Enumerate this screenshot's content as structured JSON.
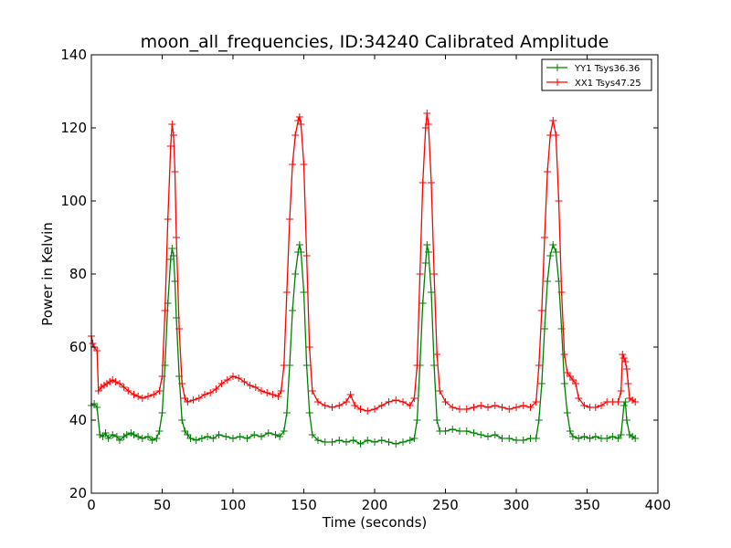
{
  "chart_data": {
    "type": "line",
    "title": "moon_all_frequencies, ID:34240 Calibrated Amplitude",
    "xlabel": "Time (seconds)",
    "ylabel": "Power in Kelvin",
    "xlim": [
      0,
      400
    ],
    "ylim": [
      20,
      140
    ],
    "xticks": [
      0,
      50,
      100,
      150,
      200,
      250,
      300,
      350,
      400
    ],
    "yticks": [
      20,
      40,
      60,
      80,
      100,
      120,
      140
    ],
    "grid": false,
    "legend_position": "top-right",
    "marker": "+",
    "series": [
      {
        "name": "YY1 Tsys36.36",
        "color": "#008000",
        "points": [
          [
            0,
            44
          ],
          [
            2,
            44.5
          ],
          [
            4,
            43.5
          ],
          [
            6,
            36
          ],
          [
            8,
            35.5
          ],
          [
            10,
            36.5
          ],
          [
            12,
            35
          ],
          [
            15,
            36
          ],
          [
            18,
            35.5
          ],
          [
            20,
            34.5
          ],
          [
            23,
            35.5
          ],
          [
            25,
            36
          ],
          [
            28,
            36.5
          ],
          [
            30,
            36
          ],
          [
            33,
            35.5
          ],
          [
            36,
            35
          ],
          [
            40,
            35.5
          ],
          [
            43,
            34.5
          ],
          [
            46,
            35
          ],
          [
            48,
            37
          ],
          [
            50,
            42
          ],
          [
            52,
            55
          ],
          [
            54,
            72
          ],
          [
            56,
            84
          ],
          [
            57,
            87
          ],
          [
            58,
            85
          ],
          [
            59,
            78
          ],
          [
            60,
            68
          ],
          [
            62,
            52
          ],
          [
            64,
            40
          ],
          [
            66,
            37
          ],
          [
            68,
            36
          ],
          [
            70,
            35
          ],
          [
            74,
            34.5
          ],
          [
            78,
            35
          ],
          [
            82,
            35.5
          ],
          [
            86,
            35
          ],
          [
            90,
            36
          ],
          [
            95,
            35.5
          ],
          [
            100,
            35
          ],
          [
            105,
            35.5
          ],
          [
            110,
            35
          ],
          [
            115,
            36
          ],
          [
            120,
            35.5
          ],
          [
            125,
            36.5
          ],
          [
            130,
            36
          ],
          [
            133,
            35.5
          ],
          [
            136,
            37
          ],
          [
            138,
            42
          ],
          [
            140,
            55
          ],
          [
            142,
            70
          ],
          [
            144,
            80
          ],
          [
            146,
            86
          ],
          [
            147,
            88
          ],
          [
            148,
            86
          ],
          [
            150,
            75
          ],
          [
            152,
            55
          ],
          [
            154,
            42
          ],
          [
            156,
            36
          ],
          [
            160,
            34.5
          ],
          [
            165,
            34
          ],
          [
            170,
            34
          ],
          [
            175,
            34.5
          ],
          [
            180,
            34
          ],
          [
            185,
            34.5
          ],
          [
            190,
            33.5
          ],
          [
            195,
            34.5
          ],
          [
            200,
            34
          ],
          [
            205,
            34.5
          ],
          [
            210,
            34
          ],
          [
            215,
            33.5
          ],
          [
            220,
            34
          ],
          [
            225,
            34.5
          ],
          [
            228,
            35
          ],
          [
            230,
            40
          ],
          [
            232,
            55
          ],
          [
            234,
            72
          ],
          [
            236,
            83
          ],
          [
            237,
            88
          ],
          [
            238,
            86
          ],
          [
            240,
            75
          ],
          [
            242,
            55
          ],
          [
            244,
            40
          ],
          [
            246,
            37
          ],
          [
            250,
            37
          ],
          [
            255,
            37.5
          ],
          [
            260,
            37
          ],
          [
            265,
            37
          ],
          [
            270,
            36.5
          ],
          [
            275,
            36
          ],
          [
            280,
            35.5
          ],
          [
            285,
            36
          ],
          [
            290,
            35
          ],
          [
            295,
            35
          ],
          [
            300,
            34.5
          ],
          [
            305,
            34.5
          ],
          [
            310,
            35
          ],
          [
            314,
            35
          ],
          [
            316,
            40
          ],
          [
            318,
            50
          ],
          [
            320,
            65
          ],
          [
            322,
            78
          ],
          [
            324,
            85
          ],
          [
            326,
            88
          ],
          [
            328,
            86
          ],
          [
            330,
            78
          ],
          [
            332,
            65
          ],
          [
            334,
            50
          ],
          [
            336,
            42
          ],
          [
            338,
            37
          ],
          [
            340,
            35.5
          ],
          [
            344,
            35
          ],
          [
            348,
            35.5
          ],
          [
            352,
            35
          ],
          [
            356,
            35.5
          ],
          [
            360,
            35
          ],
          [
            364,
            35
          ],
          [
            368,
            35.5
          ],
          [
            372,
            35
          ],
          [
            374,
            36
          ],
          [
            376,
            44
          ],
          [
            377,
            45
          ],
          [
            378,
            40
          ],
          [
            380,
            36
          ],
          [
            382,
            35.5
          ],
          [
            384,
            35
          ]
        ]
      },
      {
        "name": "XX1 Tsys47.25",
        "color": "#ff0000",
        "points": [
          [
            0,
            63
          ],
          [
            1,
            61
          ],
          [
            2,
            60
          ],
          [
            4,
            59
          ],
          [
            5,
            48
          ],
          [
            7,
            49
          ],
          [
            9,
            49.5
          ],
          [
            11,
            50
          ],
          [
            13,
            50.5
          ],
          [
            15,
            51
          ],
          [
            17,
            50.5
          ],
          [
            20,
            50
          ],
          [
            23,
            49
          ],
          [
            26,
            48
          ],
          [
            30,
            47
          ],
          [
            33,
            46.5
          ],
          [
            36,
            46
          ],
          [
            40,
            46.5
          ],
          [
            44,
            47
          ],
          [
            48,
            48
          ],
          [
            50,
            52
          ],
          [
            52,
            70
          ],
          [
            54,
            95
          ],
          [
            56,
            115
          ],
          [
            57,
            121
          ],
          [
            58,
            118
          ],
          [
            59,
            108
          ],
          [
            60,
            90
          ],
          [
            62,
            65
          ],
          [
            64,
            50
          ],
          [
            66,
            46
          ],
          [
            68,
            45
          ],
          [
            72,
            45.5
          ],
          [
            76,
            46
          ],
          [
            80,
            47
          ],
          [
            84,
            47.5
          ],
          [
            88,
            48.5
          ],
          [
            92,
            50
          ],
          [
            96,
            51
          ],
          [
            100,
            52
          ],
          [
            104,
            51.5
          ],
          [
            108,
            50.5
          ],
          [
            112,
            49.5
          ],
          [
            116,
            49
          ],
          [
            120,
            48
          ],
          [
            124,
            47.5
          ],
          [
            128,
            47
          ],
          [
            132,
            46.5
          ],
          [
            134,
            48
          ],
          [
            136,
            55
          ],
          [
            138,
            75
          ],
          [
            140,
            95
          ],
          [
            142,
            110
          ],
          [
            144,
            118
          ],
          [
            146,
            122
          ],
          [
            147,
            123
          ],
          [
            148,
            121
          ],
          [
            150,
            110
          ],
          [
            152,
            85
          ],
          [
            154,
            60
          ],
          [
            156,
            48
          ],
          [
            160,
            45
          ],
          [
            165,
            44
          ],
          [
            170,
            43.5
          ],
          [
            175,
            44
          ],
          [
            180,
            45
          ],
          [
            183,
            47
          ],
          [
            186,
            44
          ],
          [
            190,
            43
          ],
          [
            195,
            42.5
          ],
          [
            200,
            43
          ],
          [
            205,
            44
          ],
          [
            210,
            45
          ],
          [
            215,
            45.5
          ],
          [
            220,
            45
          ],
          [
            225,
            44
          ],
          [
            228,
            46
          ],
          [
            230,
            55
          ],
          [
            232,
            80
          ],
          [
            234,
            105
          ],
          [
            236,
            120
          ],
          [
            237,
            124
          ],
          [
            238,
            121
          ],
          [
            240,
            105
          ],
          [
            242,
            80
          ],
          [
            244,
            58
          ],
          [
            246,
            48
          ],
          [
            250,
            45
          ],
          [
            255,
            43.5
          ],
          [
            260,
            43
          ],
          [
            265,
            43
          ],
          [
            270,
            43.5
          ],
          [
            275,
            44
          ],
          [
            280,
            43.5
          ],
          [
            285,
            44
          ],
          [
            290,
            43.5
          ],
          [
            295,
            43
          ],
          [
            300,
            43.5
          ],
          [
            305,
            44
          ],
          [
            310,
            43.5
          ],
          [
            314,
            45
          ],
          [
            316,
            55
          ],
          [
            318,
            70
          ],
          [
            320,
            90
          ],
          [
            322,
            108
          ],
          [
            324,
            118
          ],
          [
            326,
            122
          ],
          [
            328,
            118
          ],
          [
            330,
            100
          ],
          [
            332,
            75
          ],
          [
            334,
            58
          ],
          [
            336,
            53
          ],
          [
            338,
            52
          ],
          [
            340,
            51
          ],
          [
            342,
            50
          ],
          [
            344,
            46
          ],
          [
            348,
            44
          ],
          [
            352,
            43.5
          ],
          [
            356,
            43.5
          ],
          [
            360,
            44
          ],
          [
            364,
            45
          ],
          [
            368,
            45
          ],
          [
            372,
            45
          ],
          [
            374,
            48
          ],
          [
            375,
            58
          ],
          [
            376,
            57
          ],
          [
            377,
            56
          ],
          [
            378,
            54
          ],
          [
            379,
            50
          ],
          [
            380,
            46
          ],
          [
            382,
            45.5
          ],
          [
            384,
            45
          ]
        ]
      }
    ]
  }
}
